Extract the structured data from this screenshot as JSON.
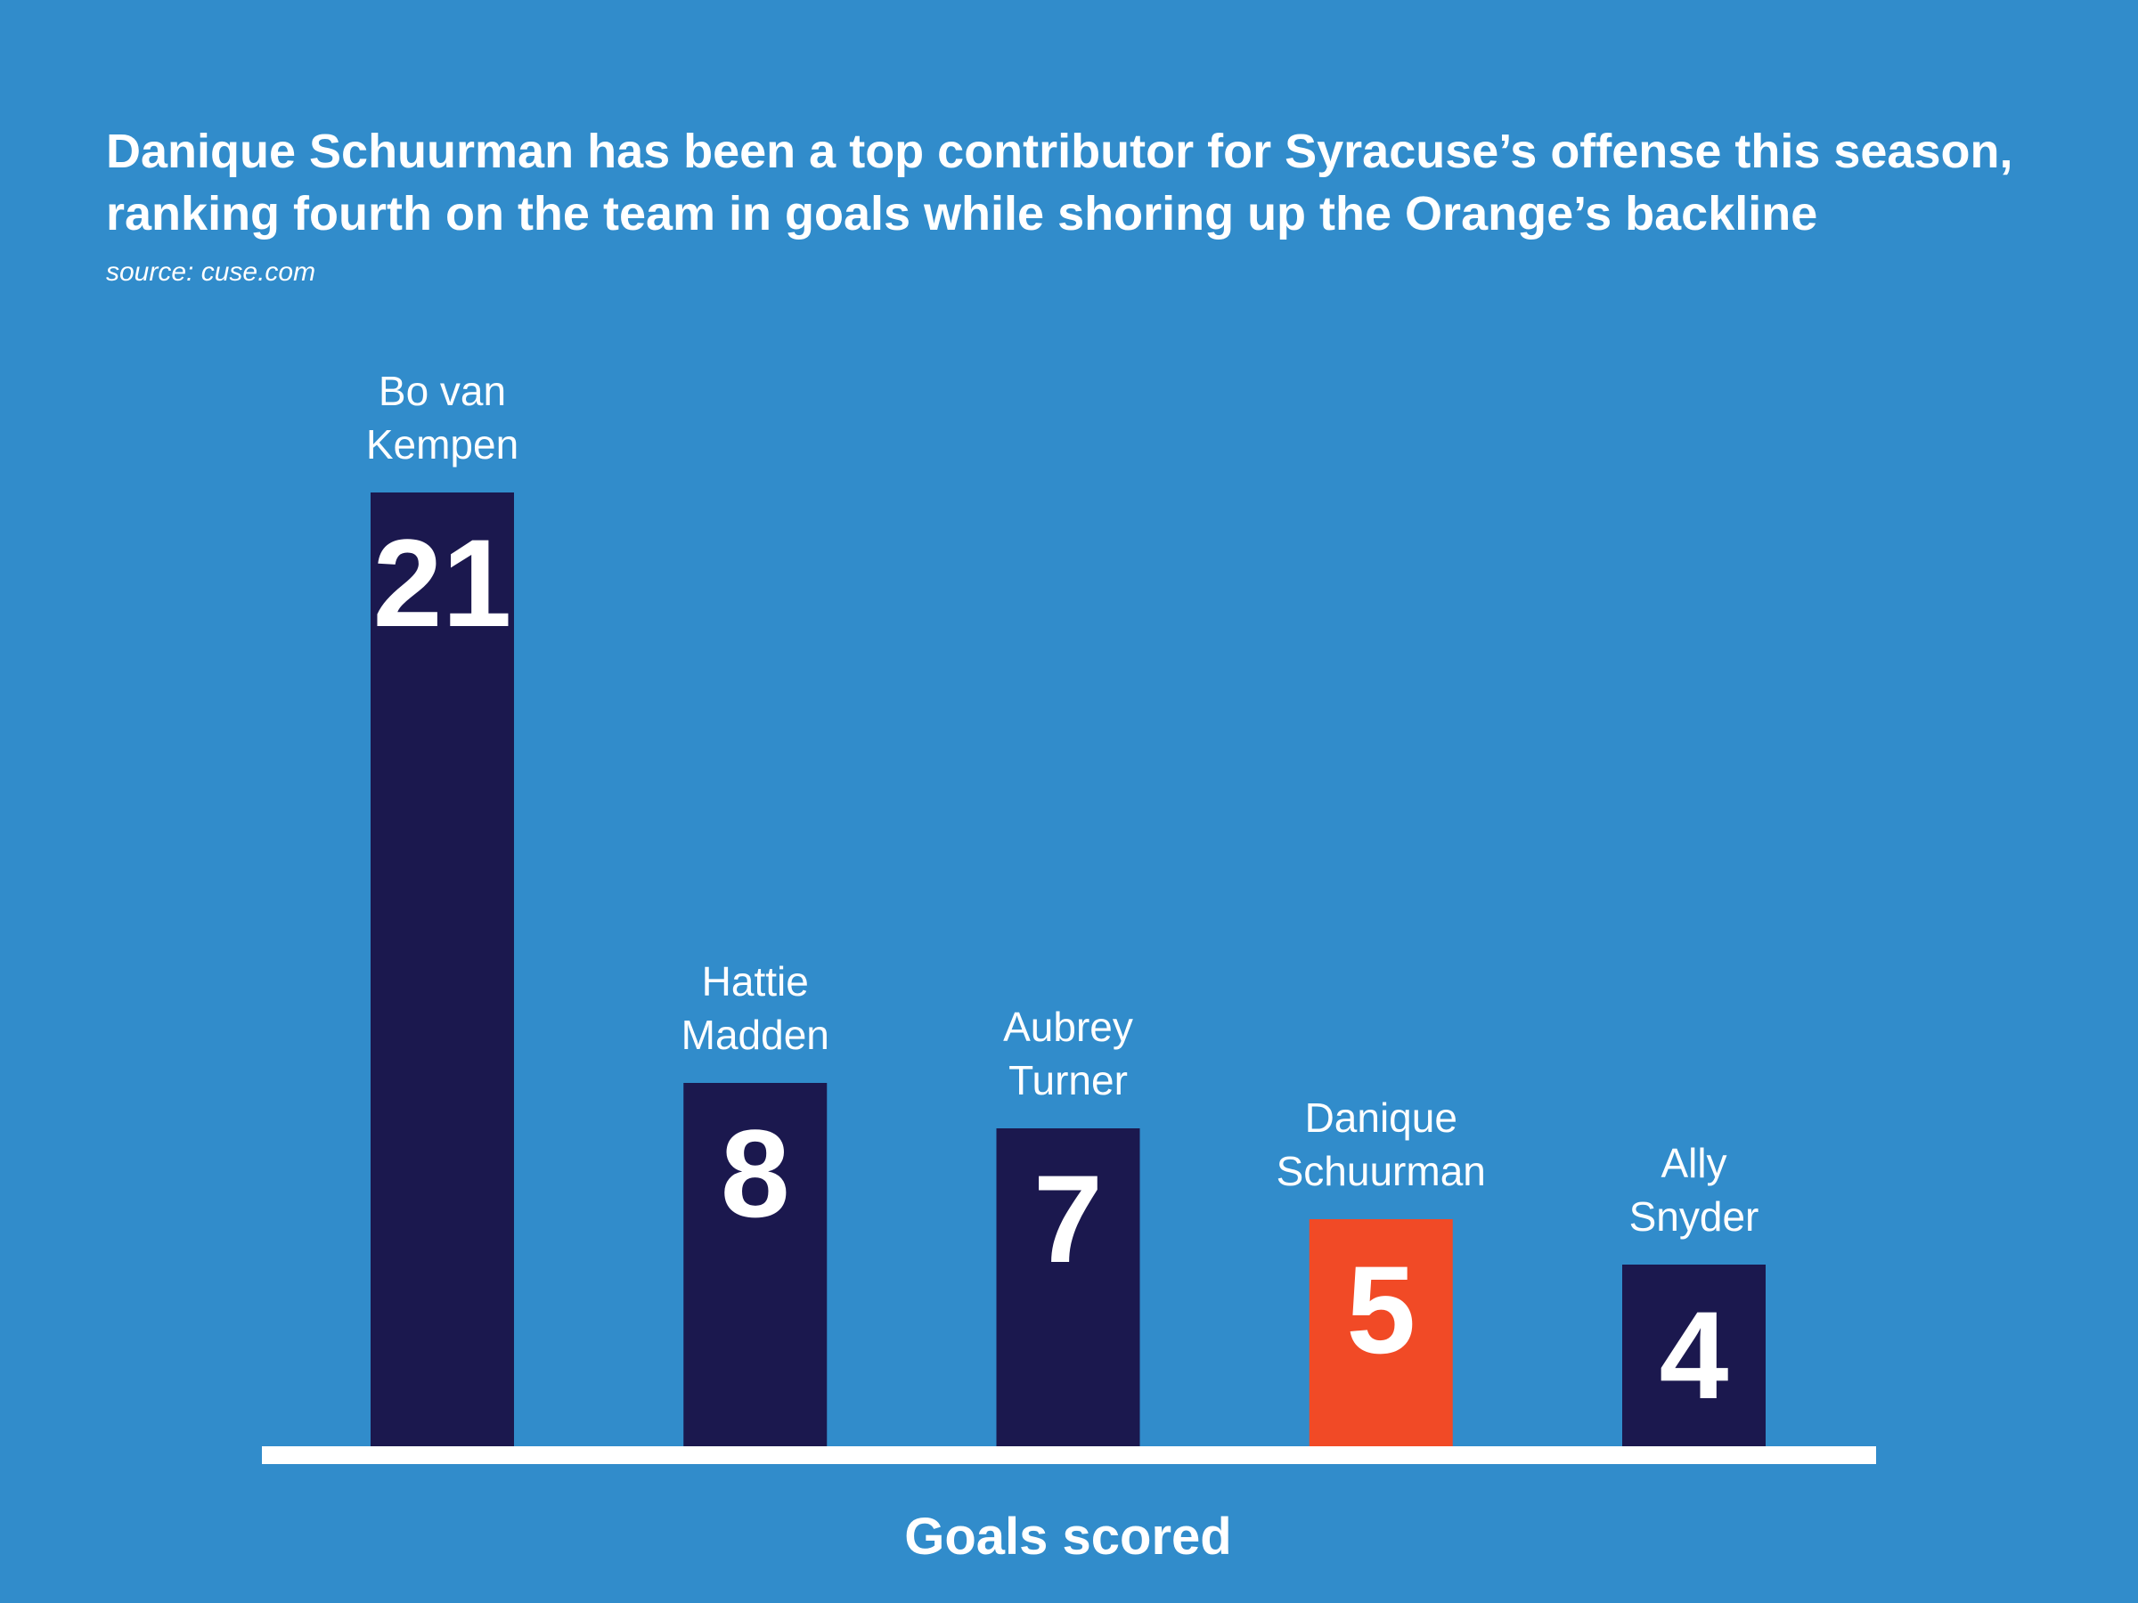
{
  "title_lines": [
    "Danique Schuurman has been a top contributor for Syracuse’s offense this season,",
    "ranking fourth on the team in goals while shoring up the Orange’s backline"
  ],
  "source": "source: cuse.com",
  "colors": {
    "background": "#318CCB",
    "bar": "#1B184E",
    "highlight_bar": "#F14A26",
    "text": "#FFFFFF",
    "baseline": "#FFFFFF"
  },
  "chart_data": {
    "type": "bar",
    "categories": [
      [
        "Bo van",
        "Kempen"
      ],
      [
        "Hattie",
        "Madden"
      ],
      [
        "Aubrey",
        "Turner"
      ],
      [
        "Danique",
        "Schuurman"
      ],
      [
        "Ally",
        "Snyder"
      ]
    ],
    "values": [
      21,
      8,
      7,
      5,
      4
    ],
    "highlight_index": 3,
    "xlabel": "Goals scored",
    "ylabel": "",
    "ylim": [
      0,
      21
    ],
    "grid": false,
    "legend": "none"
  }
}
